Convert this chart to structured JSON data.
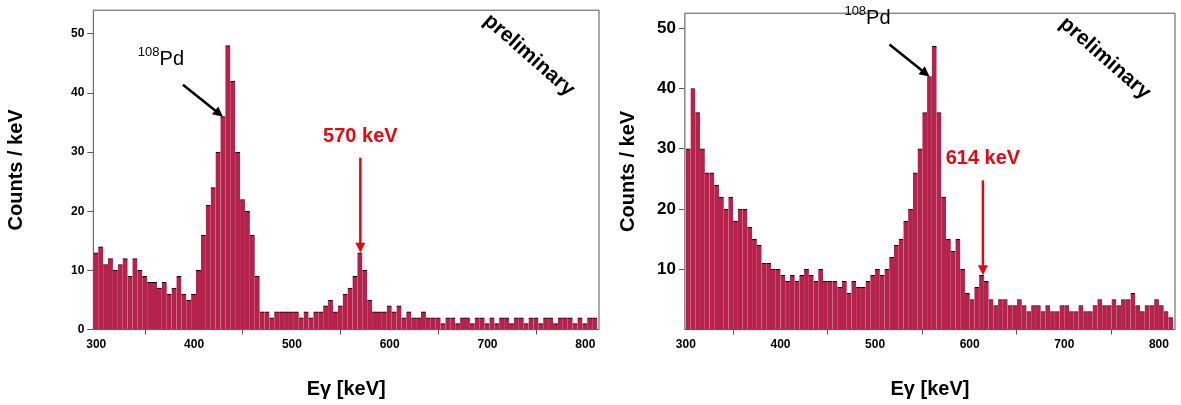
{
  "chart_data": [
    {
      "type": "histogram",
      "xlabel": "Eγ [keV]",
      "ylabel": "Counts / keV",
      "color": "#b3234b",
      "bins": [
        297,
        302,
        307,
        312,
        317,
        322,
        327,
        332,
        337,
        342,
        347,
        352,
        357,
        362,
        367,
        372,
        377,
        382,
        387,
        392,
        397,
        402,
        407,
        412,
        417,
        422,
        427,
        432,
        437,
        442,
        447,
        452,
        457,
        462,
        467,
        472,
        477,
        482,
        487,
        492,
        497,
        502,
        507,
        512,
        517,
        522,
        527,
        532,
        537,
        542,
        547,
        552,
        557,
        562,
        567,
        572,
        577,
        582,
        587,
        592,
        597,
        602,
        607,
        612,
        617,
        622,
        627,
        632,
        637,
        642,
        647,
        652,
        657,
        662,
        667,
        672,
        677,
        682,
        687,
        692,
        697,
        702,
        707,
        712,
        717,
        722,
        727,
        732,
        737,
        742,
        747,
        752,
        757,
        762,
        767,
        772,
        777,
        782,
        787,
        792,
        797,
        802,
        807,
        812
      ],
      "values": [
        13,
        14,
        11,
        12,
        10,
        11,
        12,
        9,
        12,
        10,
        9,
        8,
        8,
        7,
        8,
        6,
        7,
        9,
        6,
        5,
        6,
        10,
        16,
        21,
        24,
        30,
        36,
        48,
        42,
        30,
        22,
        20,
        16,
        9,
        3,
        3,
        2,
        3,
        3,
        3,
        3,
        3,
        2,
        3,
        2,
        3,
        3,
        4,
        5,
        3,
        4,
        6,
        7,
        9,
        13,
        10,
        5,
        3,
        3,
        3,
        4,
        3,
        4,
        2,
        3,
        2,
        2,
        3,
        2,
        2,
        2,
        1,
        2,
        2,
        1,
        2,
        2,
        1,
        2,
        2,
        1,
        2,
        1,
        2,
        2,
        1,
        2,
        2,
        1,
        2,
        2,
        1,
        2,
        2,
        1,
        2,
        2,
        2,
        1,
        2,
        1,
        2,
        2
      ],
      "xlim": [
        297,
        814
      ],
      "ylim": [
        0,
        54
      ],
      "xticks": [
        300,
        400,
        500,
        600,
        700,
        800
      ],
      "yticks": [
        0,
        10,
        20,
        30,
        40,
        50
      ],
      "annotations": [
        {
          "text": "$^{108}$Pd",
          "x": 429.5,
          "y": 36
        },
        {
          "text": "570 keV",
          "x": 570,
          "y": 13
        },
        "preliminary"
      ]
    },
    {
      "type": "histogram",
      "xlabel": "Eγ [keV]",
      "ylabel": "Counts / keV",
      "color": "#b3234b",
      "bins": [
        300,
        305,
        310,
        315,
        320,
        325,
        330,
        335,
        340,
        345,
        350,
        355,
        360,
        365,
        370,
        375,
        380,
        385,
        390,
        395,
        400,
        405,
        410,
        415,
        420,
        425,
        430,
        435,
        440,
        445,
        450,
        455,
        460,
        465,
        470,
        475,
        480,
        485,
        490,
        495,
        500,
        505,
        510,
        515,
        520,
        525,
        530,
        535,
        540,
        545,
        550,
        555,
        560,
        565,
        570,
        575,
        580,
        585,
        590,
        595,
        600,
        605,
        610,
        615,
        620,
        625,
        630,
        635,
        640,
        645,
        650,
        655,
        660,
        665,
        670,
        675,
        680,
        685,
        690,
        695,
        700,
        705,
        710,
        715,
        720,
        725,
        730,
        735,
        740,
        745,
        750,
        755,
        760,
        765,
        770,
        775,
        780,
        785,
        790,
        795,
        800,
        805,
        810,
        815
      ],
      "values": [
        30,
        40,
        36,
        30,
        26,
        26,
        24,
        22,
        20,
        22,
        18,
        20,
        20,
        17,
        15,
        14,
        11,
        11,
        10,
        10,
        9,
        8,
        9,
        8,
        9,
        10,
        9,
        8,
        10,
        8,
        8,
        8,
        7,
        8,
        6,
        8,
        7,
        7,
        8,
        9,
        10,
        9,
        10,
        12,
        14,
        15,
        18,
        20,
        26,
        30,
        36,
        42,
        47,
        36,
        22,
        15,
        13,
        15,
        10,
        6,
        5,
        7,
        9,
        8,
        5,
        4,
        5,
        5,
        4,
        4,
        5,
        4,
        3,
        4,
        4,
        3,
        4,
        3,
        3,
        4,
        4,
        3,
        3,
        4,
        3,
        3,
        4,
        5,
        4,
        4,
        5,
        4,
        5,
        5,
        6,
        4,
        3,
        4,
        4,
        5,
        4,
        3,
        2
      ],
      "xlim": [
        299,
        817
      ],
      "ylim": [
        0,
        52.5
      ],
      "xticks": [
        300,
        400,
        500,
        600,
        700,
        800
      ],
      "yticks": [
        10,
        20,
        30,
        40,
        50
      ],
      "annotations": [
        {
          "text": "$^{108}$Pd",
          "x": 557.5,
          "y": 42
        },
        {
          "text": "614 keV",
          "x": 614,
          "y": 9
        },
        "preliminary"
      ]
    }
  ]
}
